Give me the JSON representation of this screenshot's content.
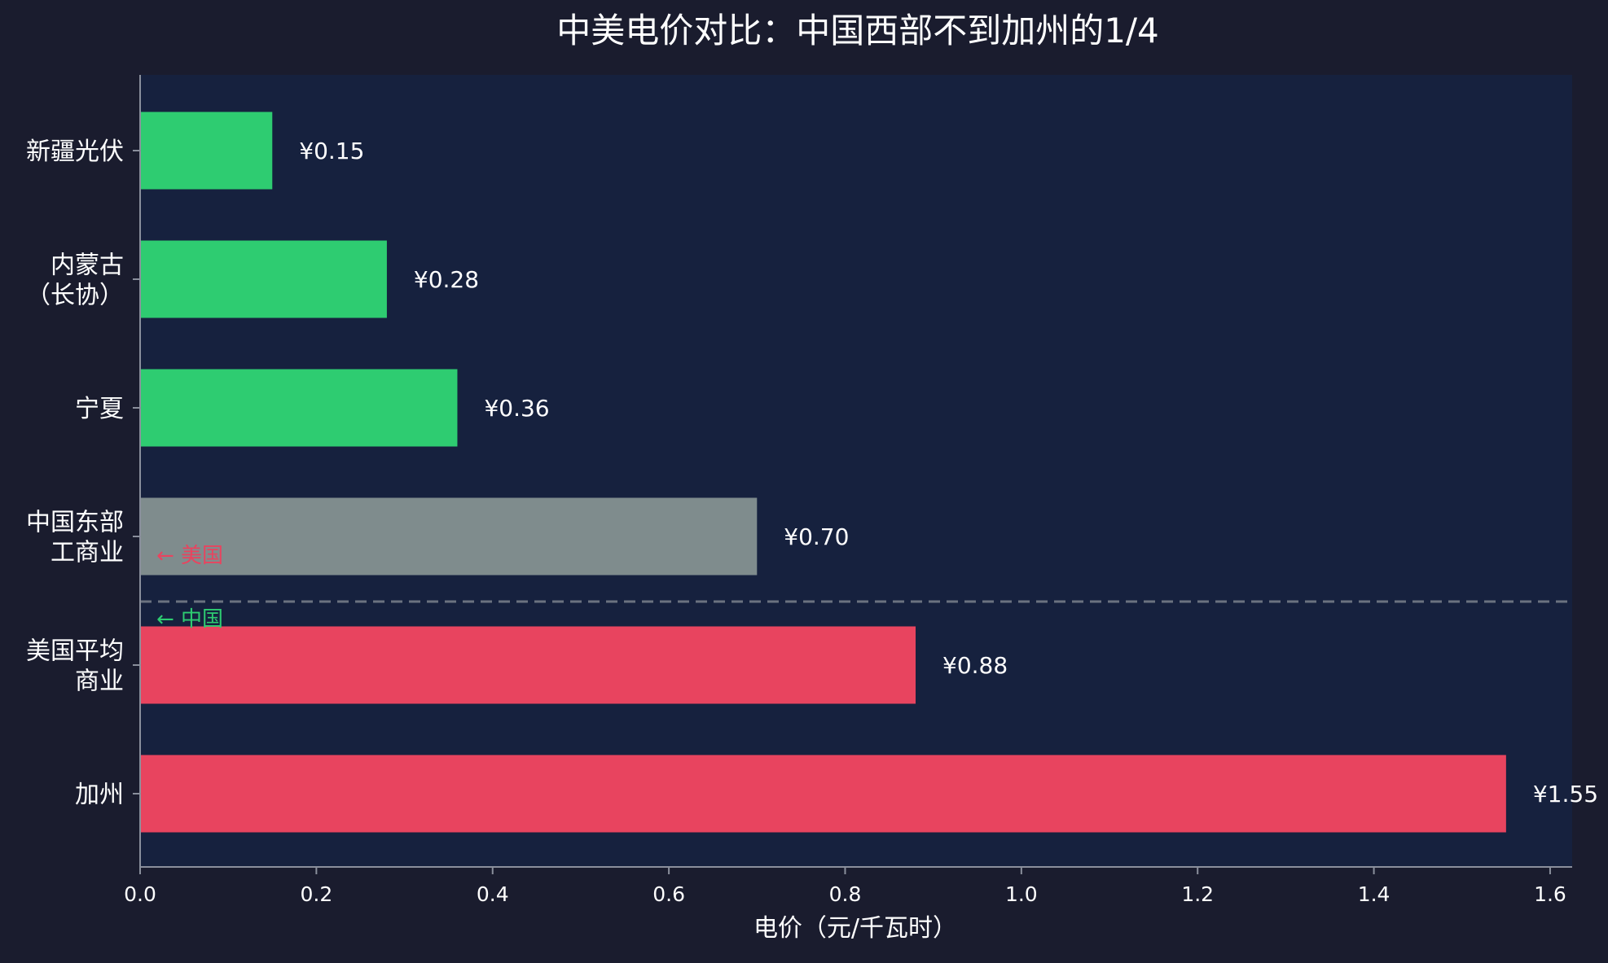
{
  "chart_data": {
    "type": "bar",
    "orientation": "horizontal",
    "title": "中美电价对比：中国西部不到加州的1/4",
    "xlabel": "电价（元/千瓦时）",
    "ylabel": "",
    "xlim": [
      0,
      1.625
    ],
    "xticks": [
      0.0,
      0.2,
      0.4,
      0.6,
      0.8,
      1.0,
      1.2,
      1.4,
      1.6
    ],
    "xtick_labels": [
      "0.0",
      "0.2",
      "0.4",
      "0.6",
      "0.8",
      "1.0",
      "1.2",
      "1.4",
      "1.6"
    ],
    "grid": false,
    "categories": [
      [
        "新疆光伏"
      ],
      [
        "内蒙古",
        "（长协）"
      ],
      [
        "宁夏"
      ],
      [
        "中国东部",
        "工商业"
      ],
      [
        "美国平均",
        "商业"
      ],
      [
        "加州"
      ]
    ],
    "values": [
      0.15,
      0.28,
      0.36,
      0.7,
      0.88,
      1.55
    ],
    "value_labels": [
      "¥0.15",
      "¥0.28",
      "¥0.36",
      "¥0.70",
      "¥0.88",
      "¥1.55"
    ],
    "bar_colors": [
      "#2ecc71",
      "#2ecc71",
      "#2ecc71",
      "#7f8c8d",
      "#e8445f",
      "#e8445f"
    ],
    "divider": {
      "label_above": "← 美国",
      "label_below": "← 中国",
      "color_above": "#e8445f",
      "color_below": "#2ecc71"
    },
    "colors": {
      "page_bg": "#1a1c2e",
      "plot_bg": "#16213e",
      "axis": "#8a8f9c",
      "text": "#ffffff",
      "divider": "#6b7280"
    }
  }
}
